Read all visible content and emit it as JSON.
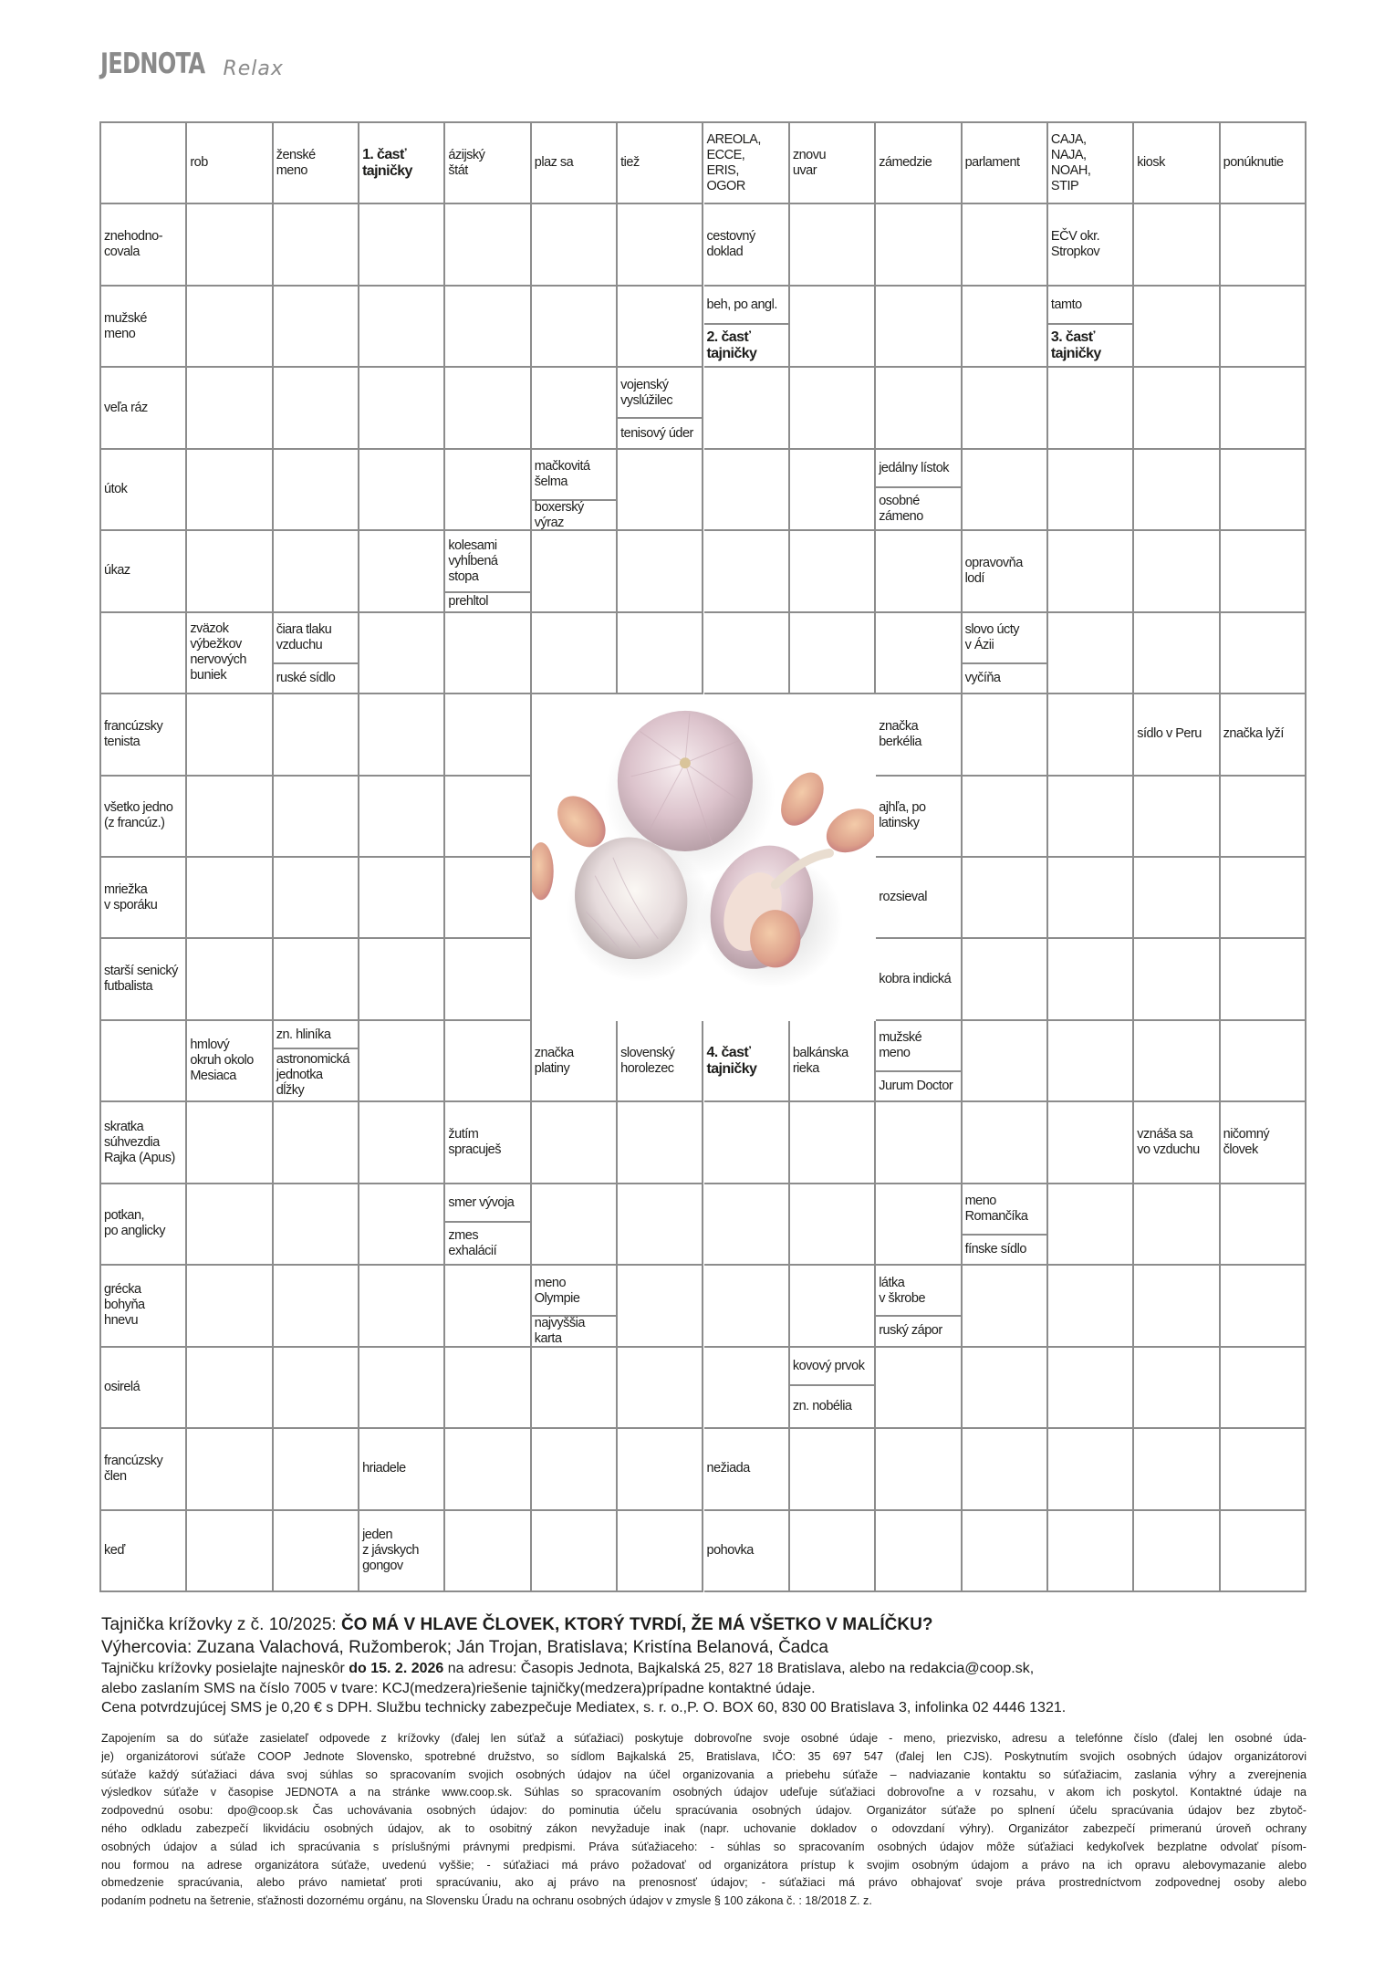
{
  "header": {
    "logo": "JEDNOTA",
    "section": "Relax"
  },
  "crossword": {
    "image_description_icon": "garlic-photo",
    "rows": [
      [
        "",
        "rob",
        "ženské\nmeno",
        {
          "text": "1. časť\ntajničky",
          "bold": true
        },
        "ázijský\nštát",
        "plaz sa",
        "tiež",
        "AREOLA,\nECCE,\nERIS,\nOGOR",
        "znovu\nuvar",
        "zámedzie",
        "parlament",
        "CAJA,\nNAJA,\nNOAH,\nSTIP",
        "kiosk",
        "ponúknutie"
      ],
      [
        "znehodno-\ncovala",
        "",
        "",
        "",
        "",
        "",
        "",
        "cestovný\ndoklad",
        "",
        "",
        "",
        "EČV okr.\nStropkov",
        "",
        ""
      ],
      [
        "mužské\nmeno",
        "",
        "",
        "",
        "",
        "",
        "",
        {
          "top": "beh, po angl.",
          "bottom": {
            "text": "2. časť\ntajničky",
            "bold": true
          }
        },
        "",
        "",
        "",
        {
          "top": "tamto",
          "bottom": {
            "text": "3. časť\ntajničky",
            "bold": true
          }
        },
        "",
        ""
      ],
      [
        "veľa ráz",
        "",
        "",
        "",
        "",
        "",
        {
          "top": "vojenský\nvyslúžilec",
          "bottom": "tenisový úder"
        },
        "",
        "",
        "",
        "",
        "",
        "",
        ""
      ],
      [
        "útok",
        "",
        "",
        "",
        "",
        {
          "top": "mačkovitá\nšelma",
          "bottom": "boxerský\nvýraz"
        },
        "",
        "",
        "",
        {
          "top": "jedálny lístok",
          "bottom": "osobné\nzámeno"
        },
        "",
        "",
        "",
        ""
      ],
      [
        "úkaz",
        "",
        "",
        "",
        {
          "top": "kolesami\nvyhĺbená\nstopa",
          "bottom": "prehltol"
        },
        "",
        "",
        "",
        "",
        "",
        "opravovňa\nlodí",
        "",
        "",
        ""
      ],
      [
        "",
        "zväzok\nvýbežkov\nnervových\nbuniek",
        {
          "top": "čiara tlaku\nvzduchu",
          "bottom": "ruské sídlo"
        },
        "",
        "",
        "",
        "",
        "",
        "",
        "",
        {
          "top": "slovo úcty\nv Ázii",
          "bottom": "vyčíňa"
        },
        "",
        "",
        ""
      ],
      [
        "francúzsky\ntenista",
        "",
        "",
        "",
        "",
        null,
        null,
        null,
        null,
        "značka\nberkélia",
        "",
        "",
        "sídlo v Peru",
        "značka lyží"
      ],
      [
        "všetko jedno\n(z francúz.)",
        "",
        "",
        "",
        "",
        null,
        null,
        null,
        null,
        "ajhľa, po\nlatinsky",
        "",
        "",
        "",
        ""
      ],
      [
        "mriežka\nv sporáku",
        "",
        "",
        "",
        "",
        null,
        null,
        null,
        null,
        "rozsieval",
        "",
        "",
        "",
        ""
      ],
      [
        "starší senický\nfutbalista",
        "",
        "",
        "",
        "",
        null,
        null,
        null,
        null,
        "kobra indická",
        "",
        "",
        "",
        ""
      ],
      [
        "",
        "hmlový\nokruh okolo\nMesiaca",
        {
          "top": "zn. hliníka",
          "bottom": "astronomická\njednotka\ndĺžky"
        },
        "",
        "",
        "značka\nplatiny",
        "slovenský\nhorolezec",
        {
          "text": "4. časť\ntajničky",
          "bold": true
        },
        "balkánska\nrieka",
        {
          "top": "mužské\nmeno",
          "bottom": "Jurum Doctor"
        },
        "",
        "",
        "",
        ""
      ],
      [
        "skratka\nsúhvezdia\nRajka (Apus)",
        "",
        "",
        "",
        "žutím\nspracuješ",
        "",
        "",
        "",
        "",
        "",
        "",
        "",
        "vznáša sa\nvo vzduchu",
        "ničomný\nčlovek"
      ],
      [
        "potkan,\npo anglicky",
        "",
        "",
        "",
        {
          "top": "smer vývoja",
          "bottom": "zmes\nexhalácií"
        },
        "",
        "",
        "",
        "",
        "",
        {
          "top": "meno\nRomančíka",
          "bottom": "fínske sídlo"
        },
        "",
        "",
        ""
      ],
      [
        "grécka\nbohyňa\nhnevu",
        "",
        "",
        "",
        "",
        {
          "top": "meno\nOlympie",
          "bottom": "najvyššia\nkarta"
        },
        "",
        "",
        "",
        {
          "top": "látka\nv škrobe",
          "bottom": "ruský zápor"
        },
        "",
        "",
        "",
        ""
      ],
      [
        "osirelá",
        "",
        "",
        "",
        "",
        "",
        "",
        "",
        {
          "top": "kovový prvok",
          "bottom": "zn. nobélia"
        },
        "",
        "",
        "",
        "",
        ""
      ],
      [
        "francúzsky\nčlen",
        "",
        "",
        "hriadele",
        "",
        "",
        "",
        "nežiada",
        "",
        "",
        "",
        "",
        "",
        ""
      ],
      [
        "keď",
        "",
        "",
        "jeden\nz jávskych\ngongov",
        "",
        "",
        "",
        "pohovka",
        "",
        "",
        "",
        "",
        "",
        ""
      ]
    ]
  },
  "footer": {
    "previous_label": "Tajnička krížovky z č. 10/2025: ",
    "previous_solution": "ČO MÁ V HLAVE ČLOVEK, KTORÝ TVRDÍ, ŽE MÁ VŠETKO V MALÍČKU?",
    "winners": "Výhercovia: Zuzana Valachová, Ružomberok; Ján Trojan, Bratislava; Kristína Belanová, Čadca",
    "send_prefix": "Tajničku krížovky posielajte najneskôr ",
    "deadline": "do 15. 2. 2026",
    "send_suffix": " na adresu: Časopis Jednota, Bajkalská 25, 827 18 Bratislava, alebo na redakcia@coop.sk,",
    "sms": "alebo zaslaním SMS na číslo 7005 v tvare: KCJ(medzera)riešenie tajničky(medzera)prípadne kontaktné údaje.",
    "price": "Cena potvrdzujúcej SMS je 0,20 € s DPH. Službu technicky zabezpečuje Mediatex, s. r. o.,P. O. BOX 60, 830 00 Bratislava 3, infolinka 02 4446 1321.",
    "legal_lines": [
      "Zapojením sa do súťaže zasielateľ odpovede z krížovky (ďalej len súťaž a súťažiaci) poskytuje dobrovoľne svoje osobné údaje - meno, priezvisko, adresu a telefónne číslo (ďalej len osobné úda-",
      "je) organizátorovi súťaže COOP Jednote Slovensko, spotrebné družstvo, so sídlom Bajkalská 25, Bratislava, IČO: 35 697 547 (ďalej len CJS). Poskytnutím svojich osobných údajov organizátorovi",
      "súťaže každý súťažiaci dáva svoj súhlas so spracovaním svojich osobných údajov na účel organizovania a priebehu súťaže – nadviazanie kontaktu so súťažiacim, zaslania výhry a zverejnenia",
      "výsledkov súťaže v časopise JEDNOTA a na stránke www.coop.sk. Súhlas so spracovaním osobných údajov udeľuje súťažiaci dobrovoľne a v rozsahu, v akom ich poskytol. Kontaktné údaje na",
      "zodpovednú osobu: dpo@coop.sk Čas uchovávania osobných údajov: do pominutia účelu spracúvania osobných údajov. Organizátor súťaže po splnení účelu spracúvania údajov bez zbytoč-",
      "ného odkladu zabezpečí likvidáciu osobných údajov, ak to osobitný zákon nevyžaduje inak (napr. uchovanie dokladov o odovzdaní výhry). Organizátor zabezpečí primeranú úroveň ochrany",
      "osobných údajov a súlad ich spracúvania s príslušnými právnymi predpismi. Práva súťažiaceho: - súhlas so spracovaním osobných údajov môže súťažiaci kedykoľvek bezplatne odvolať písom-",
      "nou formou na adrese organizátora súťaže, uvedenú vyššie; - súťažiaci má právo požadovať od organizátora prístup k svojim osobným údajom a právo na ich opravu alebovymazanie alebo",
      "obmedzenie spracúvania, alebo právo namietať proti spracúvaniu, ako aj právo na prenosnosť údajov; - súťažiaci má právo obhajovať svoje práva prostredníctvom zodpovednej osoby alebo",
      "podaním podnetu na šetrenie, sťažnosti dozornému orgánu, na Slovensku Úradu na ochranu osobných údajov v zmysle § 100 zákona č. : 18/2018 Z. z."
    ]
  }
}
